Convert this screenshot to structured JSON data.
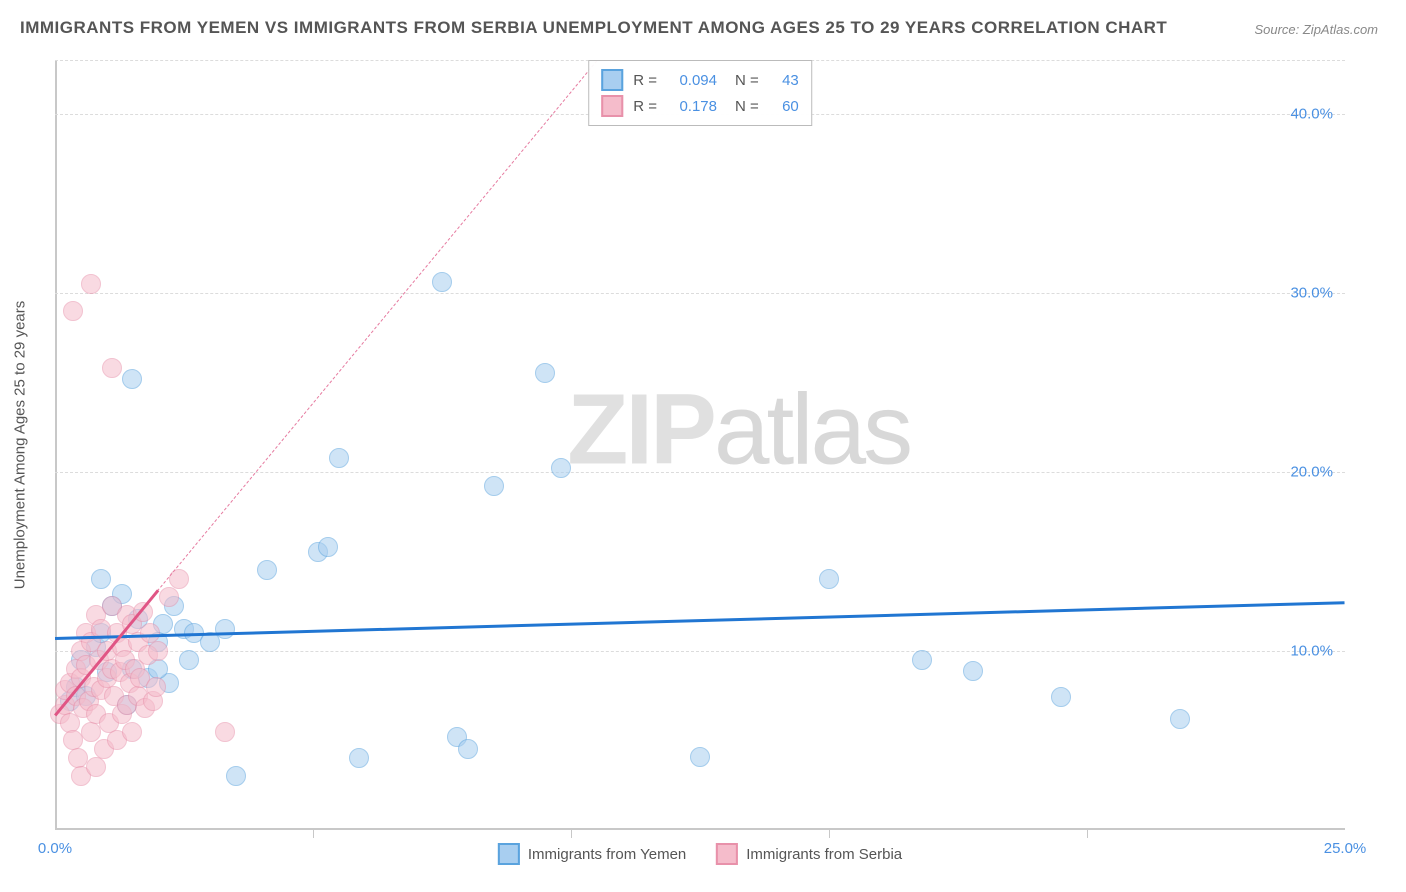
{
  "title": "IMMIGRANTS FROM YEMEN VS IMMIGRANTS FROM SERBIA UNEMPLOYMENT AMONG AGES 25 TO 29 YEARS CORRELATION CHART",
  "source": "Source: ZipAtlas.com",
  "watermark": {
    "bold": "ZIP",
    "rest": "atlas"
  },
  "chart": {
    "type": "scatter",
    "background_color": "#ffffff",
    "grid_color": "#dcdcdc",
    "axis_color": "#c8c8c8",
    "xlim": [
      0,
      25
    ],
    "ylim": [
      0,
      43
    ],
    "xticks": [
      {
        "v": 0,
        "label": "0.0%"
      },
      {
        "v": 25,
        "label": "25.0%"
      }
    ],
    "yticks": [
      {
        "v": 10,
        "label": "10.0%"
      },
      {
        "v": 20,
        "label": "20.0%"
      },
      {
        "v": 30,
        "label": "30.0%"
      },
      {
        "v": 40,
        "label": "40.0%"
      }
    ],
    "x_minor_ticks": [
      5,
      10,
      15,
      20
    ],
    "ylabel": "Unemployment Among Ages 25 to 29 years",
    "tick_color": "#4a90e2",
    "marker_radius": 10,
    "marker_opacity": 0.55,
    "series": [
      {
        "name": "Immigrants from Yemen",
        "fill": "#a8cef0",
        "stroke": "#5aa3de",
        "R": "0.094",
        "N": "43",
        "trend": {
          "x1": 0,
          "y1": 10.8,
          "x2": 25,
          "y2": 12.8,
          "color": "#2176d2",
          "width": 2.5,
          "dashed": false
        },
        "points": [
          [
            0.3,
            7.2
          ],
          [
            0.4,
            8.0
          ],
          [
            0.5,
            9.5
          ],
          [
            0.6,
            7.5
          ],
          [
            0.8,
            10.2
          ],
          [
            0.9,
            11.0
          ],
          [
            1.0,
            8.8
          ],
          [
            1.1,
            12.5
          ],
          [
            1.3,
            13.2
          ],
          [
            1.4,
            7.0
          ],
          [
            1.5,
            9.0
          ],
          [
            1.6,
            11.8
          ],
          [
            1.8,
            8.5
          ],
          [
            1.5,
            25.2
          ],
          [
            0.9,
            14.0
          ],
          [
            2.0,
            10.5
          ],
          [
            2.1,
            11.5
          ],
          [
            2.2,
            8.2
          ],
          [
            2.3,
            12.5
          ],
          [
            2.5,
            11.2
          ],
          [
            2.6,
            9.5
          ],
          [
            2.7,
            11.0
          ],
          [
            3.0,
            10.5
          ],
          [
            3.3,
            11.2
          ],
          [
            3.5,
            3.0
          ],
          [
            4.1,
            14.5
          ],
          [
            5.1,
            15.5
          ],
          [
            5.3,
            15.8
          ],
          [
            5.5,
            20.8
          ],
          [
            5.9,
            4.0
          ],
          [
            7.5,
            30.6
          ],
          [
            7.8,
            5.2
          ],
          [
            8.5,
            19.2
          ],
          [
            9.5,
            25.5
          ],
          [
            9.8,
            20.2
          ],
          [
            12.5,
            4.1
          ],
          [
            15.0,
            14.0
          ],
          [
            16.8,
            9.5
          ],
          [
            17.8,
            8.9
          ],
          [
            19.5,
            7.4
          ],
          [
            21.8,
            6.2
          ],
          [
            8.0,
            4.5
          ],
          [
            2.0,
            9.0
          ]
        ]
      },
      {
        "name": "Immigrants from Serbia",
        "fill": "#f5bccb",
        "stroke": "#e891aa",
        "R": "0.178",
        "N": "60",
        "trend": {
          "x1": 0,
          "y1": 6.5,
          "x2": 10.5,
          "y2": 43,
          "color": "#e67ba0",
          "width": 1.5,
          "dashed": true
        },
        "trend_solid": {
          "x1": 0,
          "y1": 6.5,
          "x2": 2.0,
          "y2": 13.5,
          "color": "#e05585",
          "width": 2.5
        },
        "points": [
          [
            0.1,
            6.5
          ],
          [
            0.2,
            7.0
          ],
          [
            0.2,
            7.8
          ],
          [
            0.3,
            8.2
          ],
          [
            0.3,
            6.0
          ],
          [
            0.35,
            5.0
          ],
          [
            0.4,
            9.0
          ],
          [
            0.4,
            7.5
          ],
          [
            0.45,
            4.0
          ],
          [
            0.5,
            10.0
          ],
          [
            0.5,
            8.5
          ],
          [
            0.55,
            6.8
          ],
          [
            0.6,
            11.0
          ],
          [
            0.6,
            9.2
          ],
          [
            0.65,
            7.2
          ],
          [
            0.7,
            5.5
          ],
          [
            0.7,
            10.5
          ],
          [
            0.75,
            8.0
          ],
          [
            0.8,
            12.0
          ],
          [
            0.8,
            6.5
          ],
          [
            0.85,
            9.5
          ],
          [
            0.9,
            11.2
          ],
          [
            0.9,
            7.8
          ],
          [
            0.95,
            4.5
          ],
          [
            1.0,
            10.0
          ],
          [
            1.0,
            8.5
          ],
          [
            1.05,
            6.0
          ],
          [
            1.1,
            12.5
          ],
          [
            1.1,
            9.0
          ],
          [
            1.15,
            7.5
          ],
          [
            1.2,
            11.0
          ],
          [
            1.2,
            5.0
          ],
          [
            1.25,
            8.8
          ],
          [
            1.3,
            10.2
          ],
          [
            1.3,
            6.5
          ],
          [
            1.35,
            9.5
          ],
          [
            1.4,
            12.0
          ],
          [
            1.4,
            7.0
          ],
          [
            1.45,
            8.2
          ],
          [
            1.5,
            11.5
          ],
          [
            1.5,
            5.5
          ],
          [
            1.55,
            9.0
          ],
          [
            1.6,
            10.5
          ],
          [
            1.6,
            7.5
          ],
          [
            1.65,
            8.5
          ],
          [
            1.7,
            12.2
          ],
          [
            1.75,
            6.8
          ],
          [
            1.8,
            9.8
          ],
          [
            1.85,
            11.0
          ],
          [
            1.9,
            7.2
          ],
          [
            1.95,
            8.0
          ],
          [
            2.0,
            10.0
          ],
          [
            2.2,
            13.0
          ],
          [
            2.4,
            14.0
          ],
          [
            0.35,
            29.0
          ],
          [
            0.7,
            30.5
          ],
          [
            1.1,
            25.8
          ],
          [
            3.3,
            5.5
          ],
          [
            0.5,
            3.0
          ],
          [
            0.8,
            3.5
          ]
        ]
      }
    ]
  },
  "legend_bottom": [
    {
      "label": "Immigrants from Yemen",
      "fill": "#a8cef0",
      "stroke": "#5aa3de"
    },
    {
      "label": "Immigrants from Serbia",
      "fill": "#f5bccb",
      "stroke": "#e891aa"
    }
  ]
}
